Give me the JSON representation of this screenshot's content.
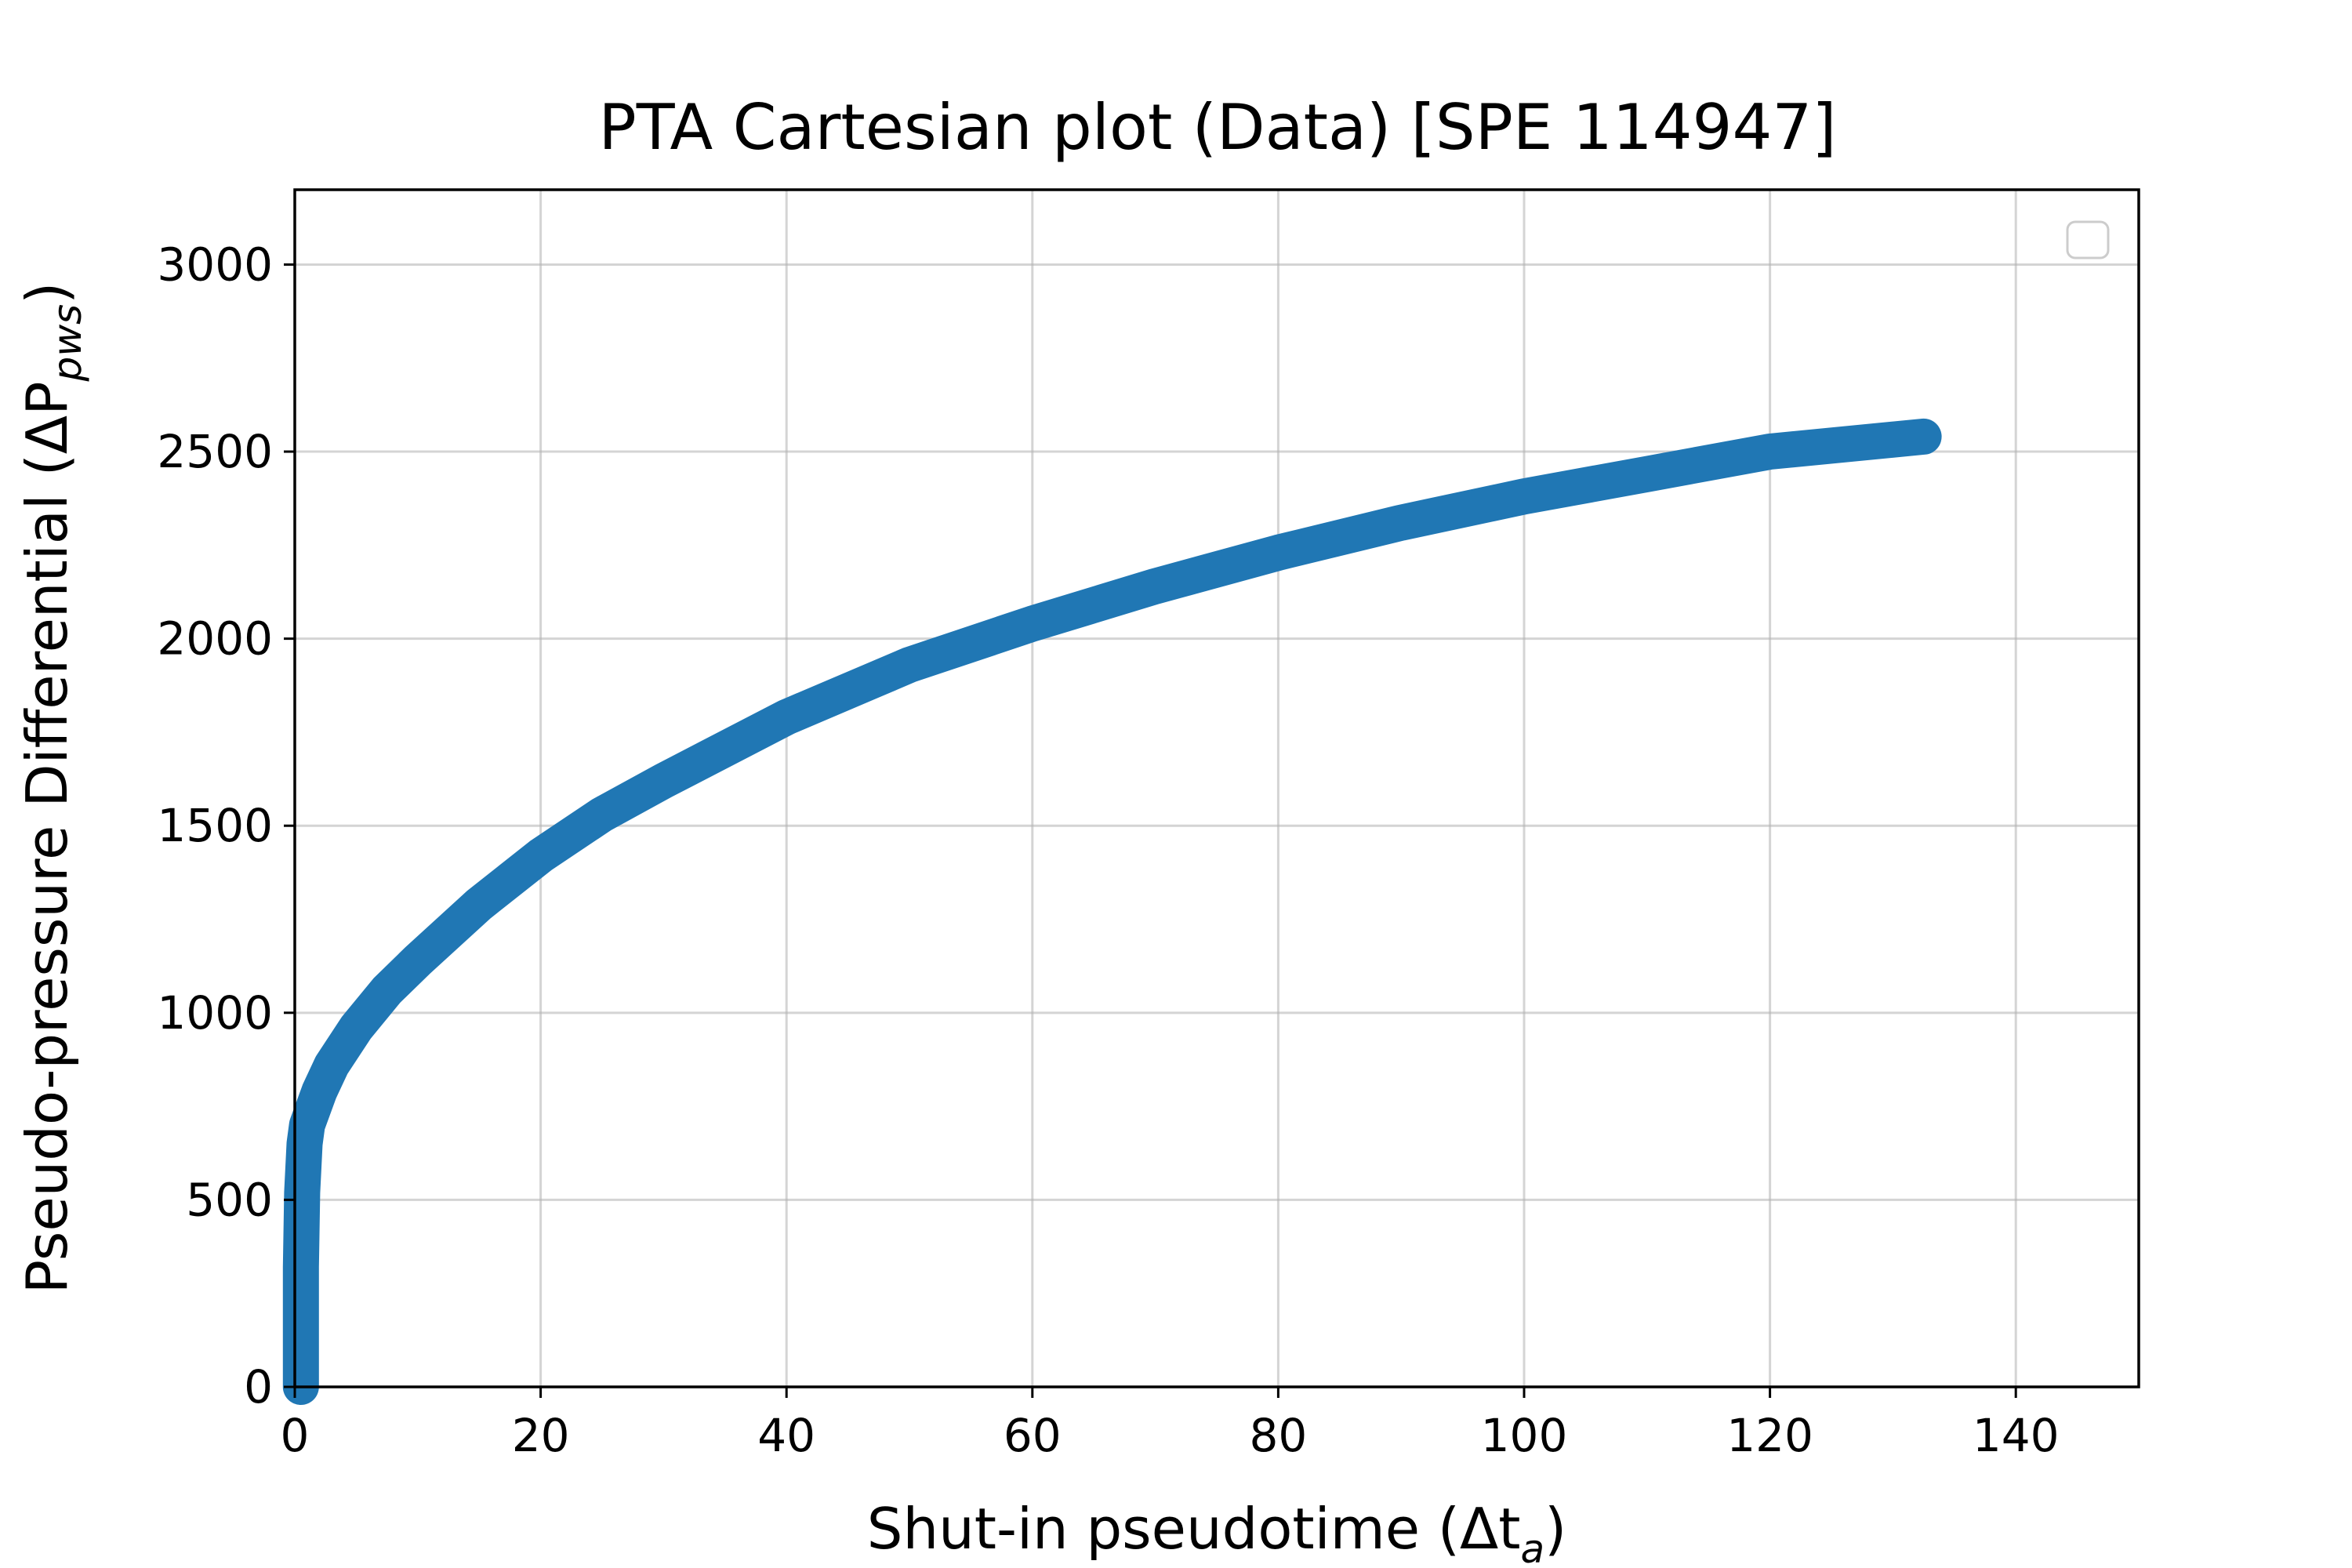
{
  "chart_data": {
    "type": "line",
    "title": "PTA Cartesian plot (Data) [SPE 114947]",
    "xlabel": {
      "text": "Shut-in pseudotime (Δt",
      "sub": "a",
      "close": ")"
    },
    "ylabel": {
      "text": "Pseudo-pressure Differential (ΔP",
      "sub": "pws",
      "close": ")"
    },
    "xlim": [
      0,
      150
    ],
    "ylim": [
      0,
      3200
    ],
    "xticks": [
      "0",
      "20",
      "40",
      "60",
      "80",
      "100",
      "120",
      "140"
    ],
    "yticks": [
      "0",
      "500",
      "1000",
      "1500",
      "2000",
      "2500",
      "3000"
    ],
    "xtick_values": [
      0,
      20,
      40,
      60,
      80,
      100,
      120,
      140
    ],
    "ytick_values": [
      0,
      500,
      1000,
      1500,
      2000,
      2500,
      3000
    ],
    "grid": true,
    "legend": "top-right (empty)",
    "series": [
      {
        "color": "#2077b4",
        "x": [
          0.5,
          0.5,
          0.6,
          0.8,
          1,
          2,
          3,
          5,
          7.5,
          10,
          15,
          20,
          25,
          30,
          40,
          50,
          60,
          70,
          80,
          90,
          100,
          110,
          120,
          132.5
        ],
        "y": [
          0,
          320,
          520,
          650,
          700,
          790,
          860,
          960,
          1060,
          1140,
          1290,
          1420,
          1530,
          1620,
          1790,
          1930,
          2040,
          2140,
          2230,
          2310,
          2380,
          2440,
          2500,
          2540
        ]
      }
    ]
  }
}
